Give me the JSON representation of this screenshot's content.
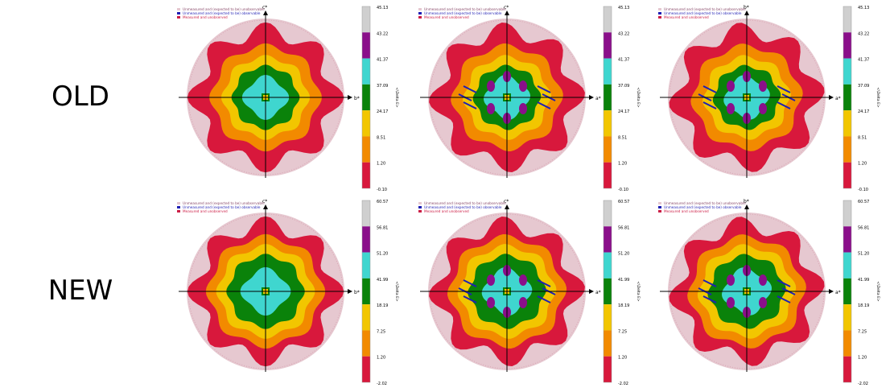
{
  "rows": [
    {
      "label": "OLD"
    },
    {
      "label": "NEW"
    }
  ],
  "legend": [
    {
      "text": "Unmeasured and (expected to be) unobservable",
      "color": "#e6c8d0"
    },
    {
      "text": "Unmeasured and (expected to be) observable",
      "color": "#1f1fb4"
    },
    {
      "text": "Measured and unobserved",
      "color": "#cc1e46"
    }
  ],
  "colorbar_label": "<\\Delta E>",
  "colors": {
    "grey": "#cfcfcf",
    "purple": "#8a0f8a",
    "cyan": "#3fd6cf",
    "green": "#0a820a",
    "yellow": "#f2c600",
    "orange": "#f28a00",
    "red": "#d8183c",
    "pink": "#e6c8d0",
    "blue": "#1f1fb4"
  },
  "chart_data": [
    {
      "type": "heatmap",
      "row": "OLD",
      "xlabel": "b*",
      "ylabel": "c*",
      "ticks": [
        "45.13",
        "43.22",
        "41.37",
        "37.09",
        "24.17",
        "8.51",
        "1.20",
        "-0.10"
      ],
      "variant": 0
    },
    {
      "type": "heatmap",
      "row": "OLD",
      "xlabel": "a*",
      "ylabel": "c*",
      "ticks": [
        "45.13",
        "43.22",
        "41.37",
        "37.09",
        "24.17",
        "8.51",
        "1.20",
        "-0.10"
      ],
      "variant": 1
    },
    {
      "type": "heatmap",
      "row": "OLD",
      "xlabel": "a*",
      "ylabel": "b*",
      "ticks": [
        "45.13",
        "43.22",
        "41.37",
        "37.09",
        "24.17",
        "8.51",
        "1.20",
        "-0.10"
      ],
      "variant": 2
    },
    {
      "type": "heatmap",
      "row": "NEW",
      "xlabel": "b*",
      "ylabel": "c*",
      "ticks": [
        "60.57",
        "56.81",
        "51.20",
        "41.99",
        "18.19",
        "7.25",
        "1.20",
        "-2.02"
      ],
      "variant": 0
    },
    {
      "type": "heatmap",
      "row": "NEW",
      "xlabel": "a*",
      "ylabel": "c*",
      "ticks": [
        "60.57",
        "56.81",
        "51.20",
        "41.99",
        "18.19",
        "7.25",
        "1.20",
        "-2.02"
      ],
      "variant": 1
    },
    {
      "type": "heatmap",
      "row": "NEW",
      "xlabel": "a*",
      "ylabel": "b*",
      "ticks": [
        "60.57",
        "56.81",
        "51.20",
        "41.99",
        "18.19",
        "7.25",
        "1.20",
        "-2.02"
      ],
      "variant": 2
    }
  ]
}
